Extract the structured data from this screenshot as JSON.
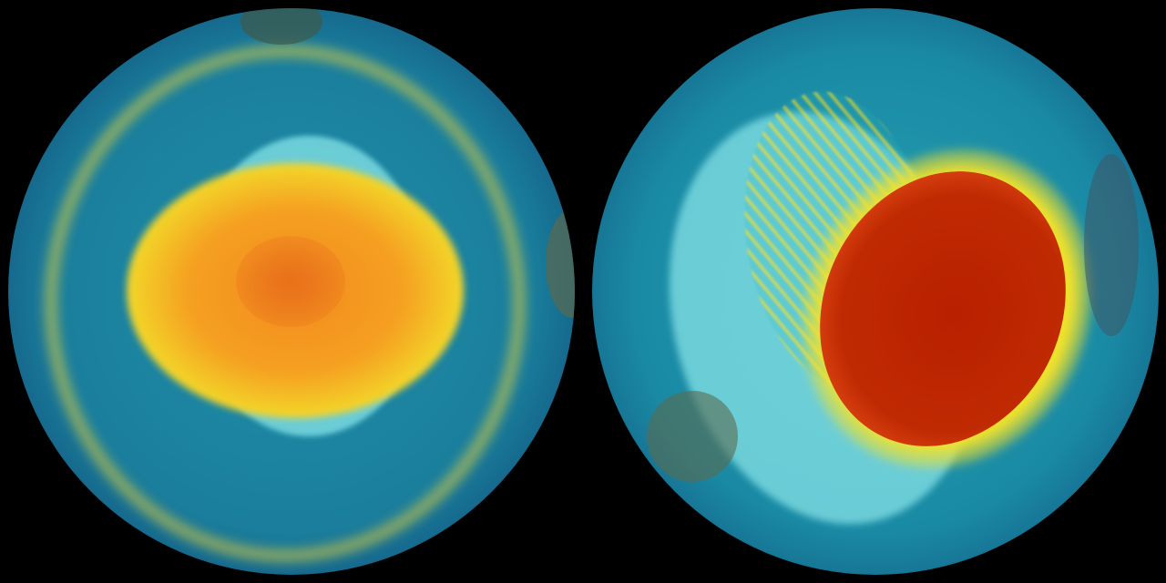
{
  "colors": {
    "background": "#000000",
    "ocean": "#1a7e9c",
    "ice": "#7fe3e6",
    "low": "#2bb5c0",
    "mid": "#f2e22a",
    "high": "#f08a1c",
    "peak": "#b82000"
  },
  "globes": [
    {
      "view": "south-polar"
    },
    {
      "view": "south-polar-displaced"
    }
  ]
}
